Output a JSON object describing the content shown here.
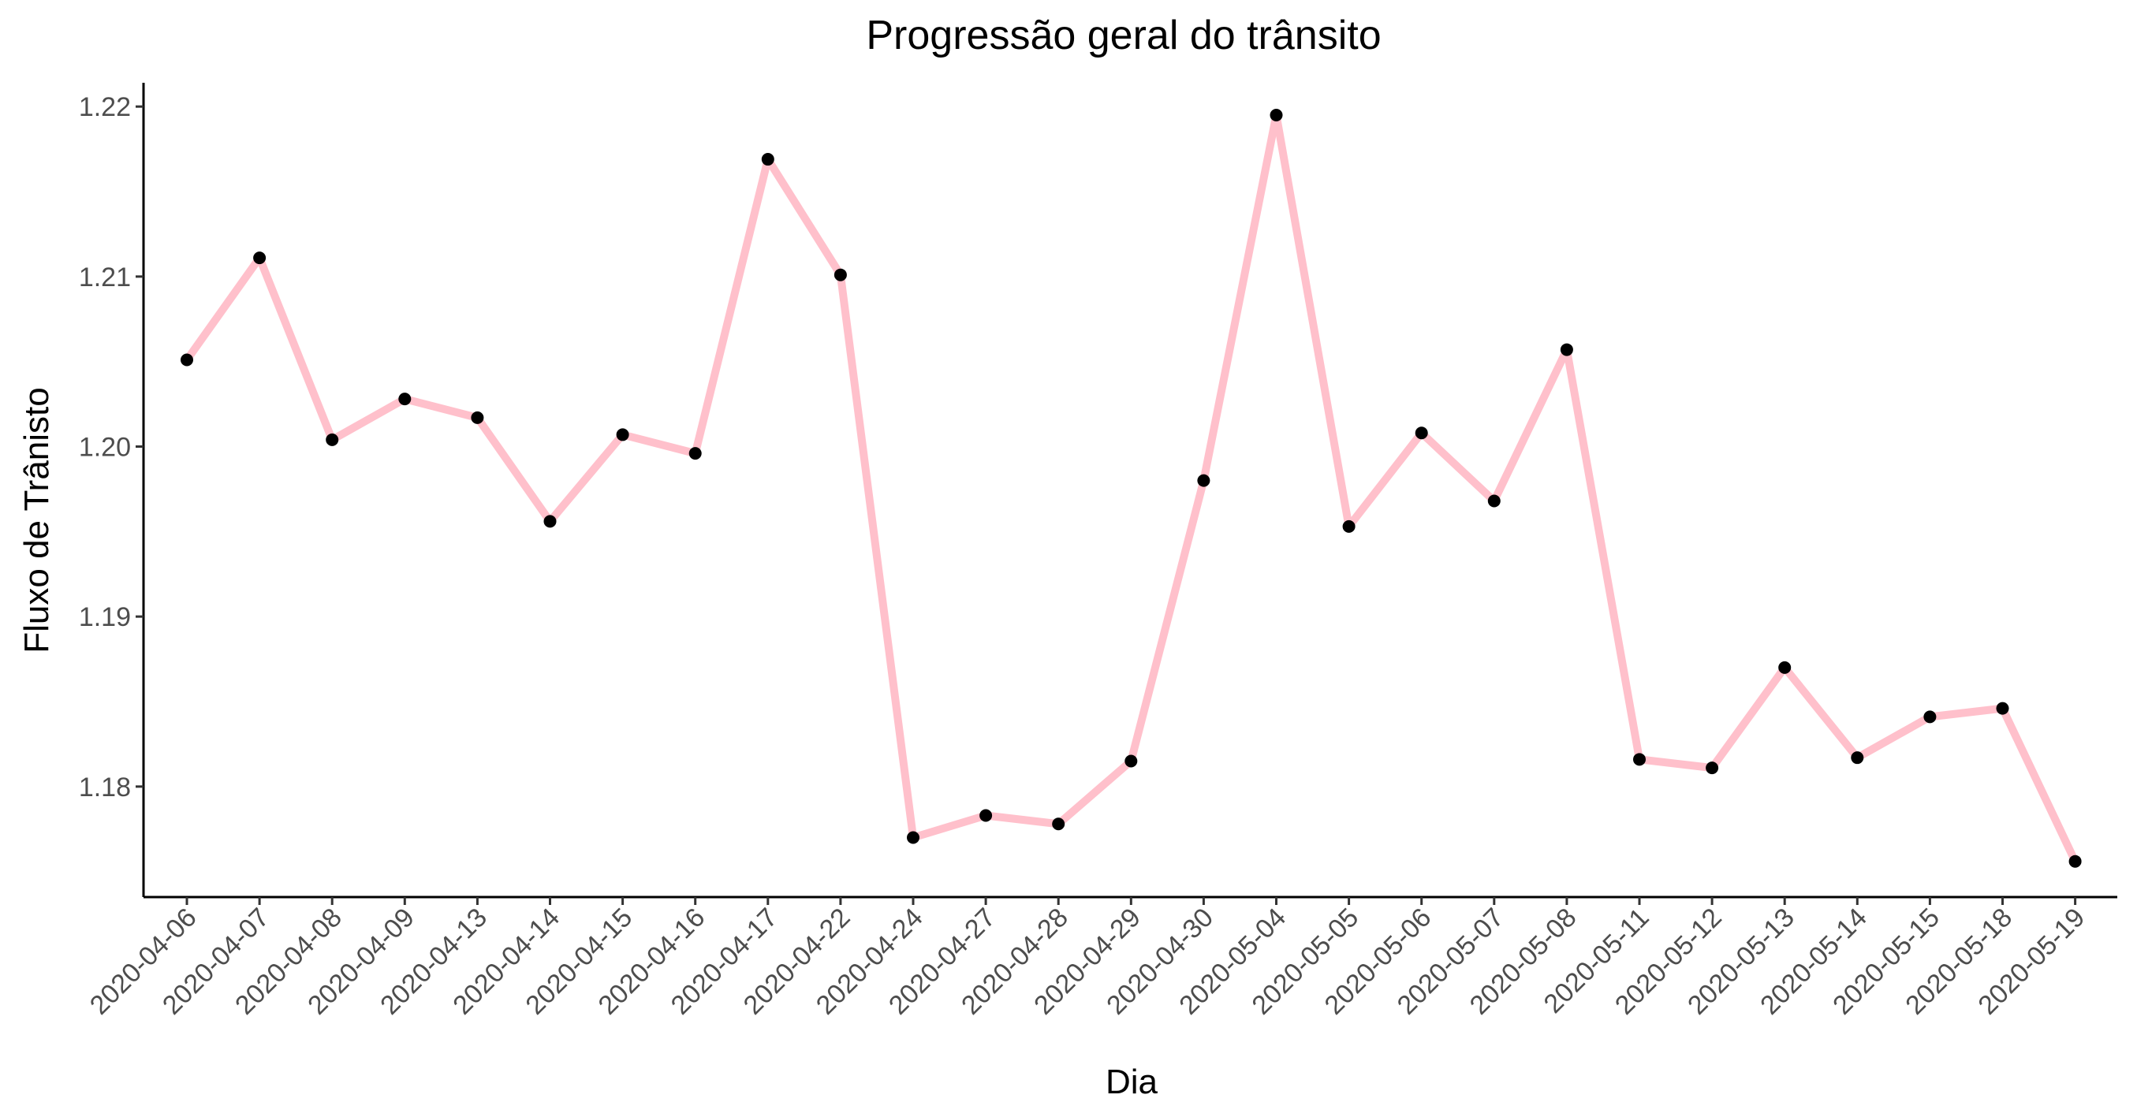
{
  "chart_data": {
    "type": "line",
    "title": "Progressão geral do trânsito",
    "xlabel": "Dia",
    "ylabel": "Fluxo de Trânisto",
    "categories": [
      "2020-04-06",
      "2020-04-07",
      "2020-04-08",
      "2020-04-09",
      "2020-04-13",
      "2020-04-14",
      "2020-04-15",
      "2020-04-16",
      "2020-04-17",
      "2020-04-22",
      "2020-04-24",
      "2020-04-27",
      "2020-04-28",
      "2020-04-29",
      "2020-04-30",
      "2020-05-04",
      "2020-05-05",
      "2020-05-06",
      "2020-05-07",
      "2020-05-08",
      "2020-05-11",
      "2020-05-12",
      "2020-05-13",
      "2020-05-14",
      "2020-05-15",
      "2020-05-18",
      "2020-05-19"
    ],
    "series": [
      {
        "values": [
          1.2051,
          1.2111,
          1.2004,
          1.2028,
          1.2017,
          1.1956,
          1.2007,
          1.1996,
          1.2169,
          1.2101,
          1.177,
          1.1783,
          1.1778,
          1.1815,
          1.198,
          1.2195,
          1.1953,
          1.2008,
          1.1968,
          1.2057,
          1.1816,
          1.1811,
          1.187,
          1.1817,
          1.1841,
          1.1846,
          1.1756
        ]
      }
    ],
    "yticks": [
      "1.18",
      "1.19",
      "1.20",
      "1.21",
      "1.22"
    ],
    "ylim": [
      1.1735,
      1.2214
    ],
    "grid": false,
    "legend": "none",
    "colors": {
      "line": "#FFC0CB",
      "points": "#000000",
      "axis": "#000000",
      "tick_text": "#4d4d4d"
    }
  }
}
